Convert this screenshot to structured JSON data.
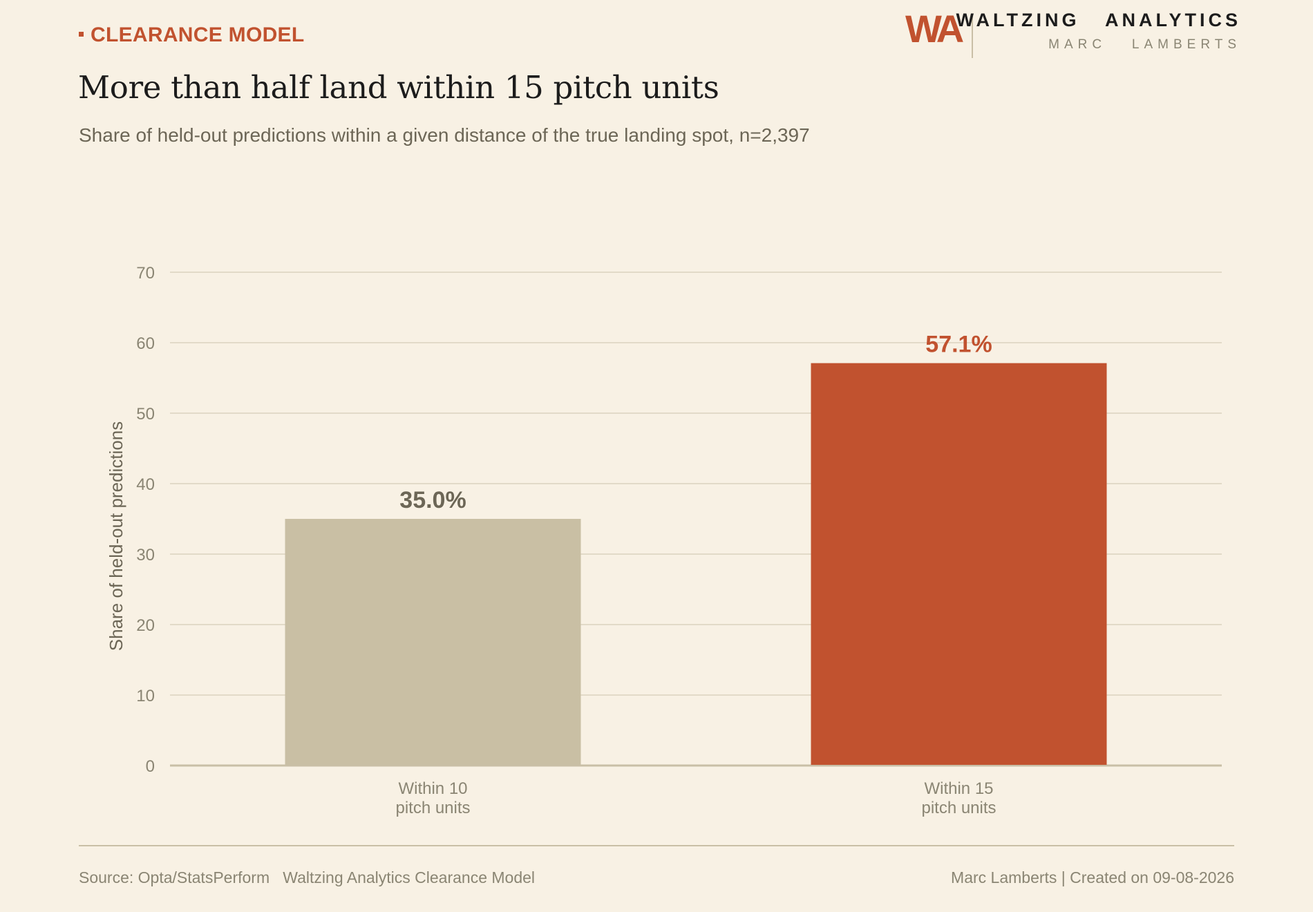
{
  "header": {
    "kicker": "CLEARANCE MODEL",
    "brand_monogram": "WA",
    "brand_name": "WALTZING   ANALYTICS",
    "brand_author": "MARC   LAMBERTS",
    "title": "More than half land within 15 pitch units",
    "subtitle": "Share of held-out predictions within a given distance of the true landing spot, n=2,397"
  },
  "footer": {
    "source": "Source: Opta/StatsPerform   Waltzing Analytics Clearance Model",
    "credit": "Marc Lamberts | Created on 09-08-2026"
  },
  "colors": {
    "background": "#f8f1e4",
    "accent": "#c1522f",
    "muted_bar": "#c9bfa4",
    "gridline": "#e2dac8",
    "axis": "#c9bfa6",
    "tick_text": "#8a8573",
    "muted_label": "#6c6656"
  },
  "chart_data": {
    "type": "bar",
    "title": "More than half land within 15 pitch units",
    "subtitle": "Share of held-out predictions within a given distance of the true landing spot, n=2,397",
    "ylabel": "Share of held-out predictions",
    "xlabel": "",
    "categories": [
      [
        "Within 10",
        "pitch units"
      ],
      [
        "Within 15",
        "pitch units"
      ]
    ],
    "values": [
      35.0,
      57.1
    ],
    "value_labels": [
      "35.0%",
      "57.1%"
    ],
    "highlight_index": 1,
    "ylim": [
      0,
      70
    ],
    "yticks": [
      0,
      10,
      20,
      30,
      40,
      50,
      60,
      70
    ],
    "grid": true,
    "legend": "none"
  }
}
